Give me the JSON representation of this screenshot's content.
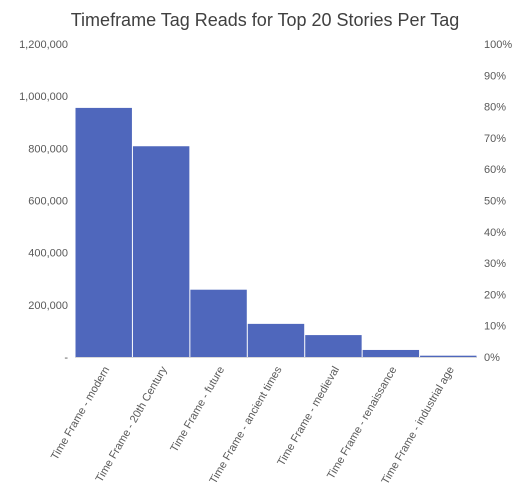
{
  "chart_data": {
    "type": "bar",
    "title": "Timeframe Tag Reads for Top 20 Stories Per Tag",
    "categories": [
      "Time Frame - modern",
      "Time Frame - 20th Century",
      "Time Frame - future",
      "Time Frame - ancient times",
      "Time Frame - medieval",
      "Time Frame - renaissance",
      "Time Frame - industrial age"
    ],
    "series": [
      {
        "values": [
          955000,
          808000,
          258000,
          127000,
          84000,
          27000,
          5000
        ]
      }
    ],
    "ylim": [
      0,
      1200000
    ],
    "y_ticks": [
      "-",
      "200,000",
      "400,000",
      "600,000",
      "800,000",
      "1,000,000",
      "1,200,000"
    ],
    "y2lim": [
      0,
      100
    ],
    "y2_ticks": [
      "0%",
      "10%",
      "20%",
      "30%",
      "40%",
      "50%",
      "60%",
      "70%",
      "80%",
      "90%",
      "100%"
    ],
    "bar_color": "#4f67bc",
    "grid": false,
    "legend": "none"
  }
}
